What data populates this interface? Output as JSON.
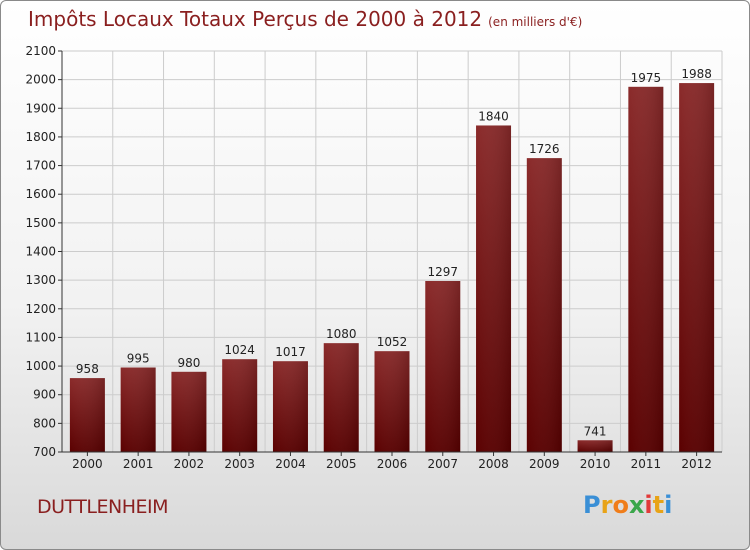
{
  "chart_data": {
    "type": "bar",
    "title": "Impôts Locaux Totaux Perçus de 2000 à 2012",
    "subtitle": "(en milliers d'€)",
    "categories": [
      "2000",
      "2001",
      "2002",
      "2003",
      "2004",
      "2005",
      "2006",
      "2007",
      "2008",
      "2009",
      "2010",
      "2011",
      "2012"
    ],
    "values": [
      958,
      995,
      980,
      1024,
      1017,
      1080,
      1052,
      1297,
      1840,
      1726,
      741,
      1975,
      1988
    ],
    "ylim": [
      700,
      2100
    ],
    "yticks": [
      700,
      800,
      900,
      1000,
      1100,
      1200,
      1300,
      1400,
      1500,
      1600,
      1700,
      1800,
      1900,
      2000,
      2100
    ],
    "xlabel": "",
    "ylabel": "",
    "grid": true,
    "bar_color": "#7a1a1a"
  },
  "location": "DUTTLENHEIM",
  "logo": {
    "letters": [
      "P",
      "r",
      "o",
      "x",
      "i",
      "t",
      "i"
    ],
    "colors": [
      "#3a8fd6",
      "#e8a317",
      "#f07d1a",
      "#3aa64a",
      "#e23a3a",
      "#e8a317",
      "#3a8fd6"
    ]
  }
}
